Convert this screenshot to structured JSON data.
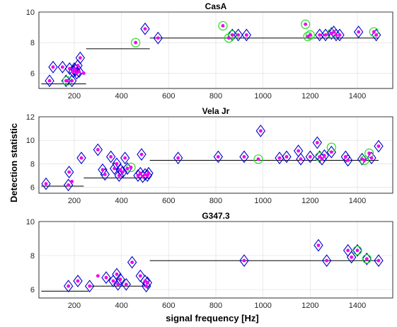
{
  "chart_data": [
    {
      "type": "scatter",
      "title": "CasA",
      "xlim": [
        50,
        1550
      ],
      "ylim": [
        5,
        10
      ],
      "xticks": [
        200,
        400,
        600,
        800,
        1000,
        1200,
        1400
      ],
      "yticks": [
        6,
        8,
        10
      ],
      "grid": true,
      "series": [
        {
          "marker": "diamond",
          "color": "#0000cc",
          "points": [
            [
              95,
              5.5
            ],
            [
              110,
              6.4
            ],
            [
              150,
              6.4
            ],
            [
              165,
              5.5
            ],
            [
              180,
              6.3
            ],
            [
              190,
              5.5
            ],
            [
              195,
              6.1
            ],
            [
              200,
              6.3
            ],
            [
              205,
              6.2
            ],
            [
              210,
              6.0
            ],
            [
              215,
              6.5
            ],
            [
              220,
              6.1
            ],
            [
              225,
              7.0
            ],
            [
              500,
              8.9
            ],
            [
              555,
              8.3
            ],
            [
              870,
              8.5
            ],
            [
              895,
              8.5
            ],
            [
              930,
              8.5
            ],
            [
              1240,
              8.5
            ],
            [
              1265,
              8.5
            ],
            [
              1290,
              8.6
            ],
            [
              1300,
              8.7
            ],
            [
              1310,
              8.5
            ],
            [
              1325,
              8.5
            ],
            [
              1405,
              8.7
            ],
            [
              1480,
              8.5
            ]
          ]
        },
        {
          "marker": "circle",
          "color": "#22dd22",
          "points": [
            [
              170,
              5.5
            ],
            [
              460,
              8.0
            ],
            [
              830,
              9.1
            ],
            [
              855,
              8.3
            ],
            [
              870,
              8.5
            ],
            [
              1180,
              9.2
            ],
            [
              1190,
              8.4
            ],
            [
              1200,
              8.5
            ],
            [
              1290,
              8.6
            ],
            [
              1470,
              8.7
            ]
          ]
        },
        {
          "marker": "dot",
          "color": "#ee00ee",
          "points": [
            [
              95,
              5.5
            ],
            [
              110,
              6.4
            ],
            [
              150,
              6.4
            ],
            [
              165,
              5.5
            ],
            [
              170,
              5.5
            ],
            [
              180,
              6.3
            ],
            [
              190,
              5.5
            ],
            [
              195,
              6.1
            ],
            [
              200,
              6.3
            ],
            [
              205,
              6.2
            ],
            [
              210,
              6.0
            ],
            [
              215,
              6.5
            ],
            [
              220,
              6.1
            ],
            [
              225,
              7.0
            ],
            [
              240,
              6.0
            ],
            [
              460,
              8.0
            ],
            [
              500,
              8.9
            ],
            [
              555,
              8.3
            ],
            [
              830,
              9.1
            ],
            [
              855,
              8.3
            ],
            [
              870,
              8.5
            ],
            [
              895,
              8.5
            ],
            [
              930,
              8.5
            ],
            [
              1180,
              9.2
            ],
            [
              1190,
              8.4
            ],
            [
              1200,
              8.5
            ],
            [
              1240,
              8.5
            ],
            [
              1265,
              8.5
            ],
            [
              1290,
              8.6
            ],
            [
              1300,
              8.7
            ],
            [
              1310,
              8.5
            ],
            [
              1325,
              8.5
            ],
            [
              1405,
              8.7
            ],
            [
              1470,
              8.7
            ],
            [
              1480,
              8.5
            ]
          ]
        }
      ],
      "thresholds": [
        {
          "x": [
            60,
            250
          ],
          "y": 5.3
        },
        {
          "x": [
            250,
            520
          ],
          "y": 7.6
        },
        {
          "x": [
            520,
            1490
          ],
          "y": 8.3
        }
      ]
    },
    {
      "type": "scatter",
      "title": "Vela Jr",
      "ylabel": "Detection statistic",
      "xlim": [
        50,
        1550
      ],
      "ylim": [
        5.5,
        12
      ],
      "xticks": [
        200,
        400,
        600,
        800,
        1000,
        1200,
        1400
      ],
      "yticks": [
        6,
        8,
        10,
        12
      ],
      "grid": true,
      "series": [
        {
          "marker": "diamond",
          "color": "#0000cc",
          "points": [
            [
              80,
              6.3
            ],
            [
              175,
              6.2
            ],
            [
              178,
              7.3
            ],
            [
              230,
              8.5
            ],
            [
              300,
              9.2
            ],
            [
              320,
              7.5
            ],
            [
              330,
              7.1
            ],
            [
              355,
              8.6
            ],
            [
              370,
              7.6
            ],
            [
              380,
              8.0
            ],
            [
              390,
              7.0
            ],
            [
              395,
              7.5
            ],
            [
              405,
              7.3
            ],
            [
              415,
              8.5
            ],
            [
              425,
              7.6
            ],
            [
              470,
              7.0
            ],
            [
              480,
              7.2
            ],
            [
              485,
              8.8
            ],
            [
              490,
              6.9
            ],
            [
              500,
              7.1
            ],
            [
              510,
              7.0
            ],
            [
              515,
              7.2
            ],
            [
              640,
              8.5
            ],
            [
              810,
              8.6
            ],
            [
              920,
              8.6
            ],
            [
              990,
              10.8
            ],
            [
              1070,
              8.5
            ],
            [
              1100,
              8.6
            ],
            [
              1150,
              9.1
            ],
            [
              1160,
              8.4
            ],
            [
              1200,
              8.6
            ],
            [
              1230,
              9.8
            ],
            [
              1240,
              8.6
            ],
            [
              1250,
              8.4
            ],
            [
              1260,
              8.7
            ],
            [
              1290,
              9.0
            ],
            [
              1350,
              8.6
            ],
            [
              1360,
              8.3
            ],
            [
              1420,
              8.4
            ],
            [
              1460,
              8.5
            ],
            [
              1490,
              9.5
            ]
          ]
        },
        {
          "marker": "circle",
          "color": "#22dd22",
          "points": [
            [
              440,
              7.7
            ],
            [
              980,
              8.4
            ],
            [
              1240,
              8.6
            ],
            [
              1290,
              9.4
            ],
            [
              1430,
              8.3
            ],
            [
              1450,
              8.9
            ]
          ]
        },
        {
          "marker": "dot",
          "color": "#ee00ee",
          "points": [
            [
              80,
              6.3
            ],
            [
              175,
              6.2
            ],
            [
              178,
              7.3
            ],
            [
              190,
              6.5
            ],
            [
              230,
              8.5
            ],
            [
              300,
              9.2
            ],
            [
              320,
              7.5
            ],
            [
              330,
              7.1
            ],
            [
              355,
              8.6
            ],
            [
              370,
              7.6
            ],
            [
              380,
              8.0
            ],
            [
              390,
              7.0
            ],
            [
              395,
              7.5
            ],
            [
              405,
              7.3
            ],
            [
              415,
              8.5
            ],
            [
              425,
              7.6
            ],
            [
              440,
              7.7
            ],
            [
              470,
              7.0
            ],
            [
              480,
              7.2
            ],
            [
              485,
              8.8
            ],
            [
              490,
              6.9
            ],
            [
              500,
              7.1
            ],
            [
              510,
              7.0
            ],
            [
              515,
              7.2
            ],
            [
              640,
              8.5
            ],
            [
              810,
              8.6
            ],
            [
              920,
              8.6
            ],
            [
              980,
              8.4
            ],
            [
              990,
              10.8
            ],
            [
              1070,
              8.5
            ],
            [
              1100,
              8.6
            ],
            [
              1150,
              9.1
            ],
            [
              1160,
              8.4
            ],
            [
              1200,
              8.6
            ],
            [
              1230,
              9.8
            ],
            [
              1240,
              8.6
            ],
            [
              1250,
              8.4
            ],
            [
              1260,
              8.7
            ],
            [
              1290,
              9.0
            ],
            [
              1350,
              8.6
            ],
            [
              1360,
              8.3
            ],
            [
              1420,
              8.4
            ],
            [
              1430,
              8.3
            ],
            [
              1450,
              8.9
            ],
            [
              1460,
              8.5
            ],
            [
              1490,
              9.5
            ]
          ]
        }
      ],
      "thresholds": [
        {
          "x": [
            60,
            240
          ],
          "y": 6.1
        },
        {
          "x": [
            240,
            520
          ],
          "y": 6.8
        },
        {
          "x": [
            520,
            1490
          ],
          "y": 8.3
        }
      ]
    },
    {
      "type": "scatter",
      "title": "G347.3",
      "xlabel": "signal frequency [Hz]",
      "xlim": [
        50,
        1550
      ],
      "ylim": [
        5.5,
        10
      ],
      "xticks": [
        200,
        400,
        600,
        800,
        1000,
        1200,
        1400
      ],
      "yticks": [
        6,
        8,
        10
      ],
      "grid": true,
      "series": [
        {
          "marker": "diamond",
          "color": "#0000cc",
          "points": [
            [
              175,
              6.2
            ],
            [
              215,
              6.5
            ],
            [
              265,
              6.2
            ],
            [
              335,
              6.7
            ],
            [
              365,
              6.5
            ],
            [
              380,
              6.9
            ],
            [
              385,
              6.3
            ],
            [
              395,
              6.6
            ],
            [
              420,
              6.3
            ],
            [
              445,
              7.6
            ],
            [
              480,
              6.8
            ],
            [
              500,
              6.5
            ],
            [
              505,
              6.2
            ],
            [
              510,
              6.4
            ],
            [
              920,
              7.7
            ],
            [
              1235,
              8.6
            ],
            [
              1270,
              7.7
            ],
            [
              1360,
              8.3
            ],
            [
              1375,
              7.9
            ],
            [
              1400,
              8.3
            ],
            [
              1440,
              7.8
            ],
            [
              1490,
              7.7
            ]
          ]
        },
        {
          "marker": "circle",
          "color": "#22dd22",
          "points": [
            [
              1400,
              8.3
            ],
            [
              1440,
              7.8
            ]
          ]
        },
        {
          "marker": "dot",
          "color": "#ee00ee",
          "points": [
            [
              175,
              6.2
            ],
            [
              215,
              6.5
            ],
            [
              265,
              6.2
            ],
            [
              300,
              6.8
            ],
            [
              335,
              6.7
            ],
            [
              365,
              6.5
            ],
            [
              380,
              6.9
            ],
            [
              385,
              6.3
            ],
            [
              395,
              6.6
            ],
            [
              420,
              6.3
            ],
            [
              445,
              7.6
            ],
            [
              480,
              6.8
            ],
            [
              500,
              6.5
            ],
            [
              505,
              6.2
            ],
            [
              510,
              6.4
            ],
            [
              920,
              7.7
            ],
            [
              1235,
              8.6
            ],
            [
              1270,
              7.7
            ],
            [
              1360,
              8.3
            ],
            [
              1375,
              7.9
            ],
            [
              1400,
              8.3
            ],
            [
              1440,
              7.8
            ],
            [
              1490,
              7.7
            ]
          ]
        }
      ],
      "thresholds": [
        {
          "x": [
            60,
            260
          ],
          "y": 5.9
        },
        {
          "x": [
            260,
            520
          ],
          "y": 6.2
        },
        {
          "x": [
            520,
            1490
          ],
          "y": 7.7
        }
      ]
    }
  ]
}
